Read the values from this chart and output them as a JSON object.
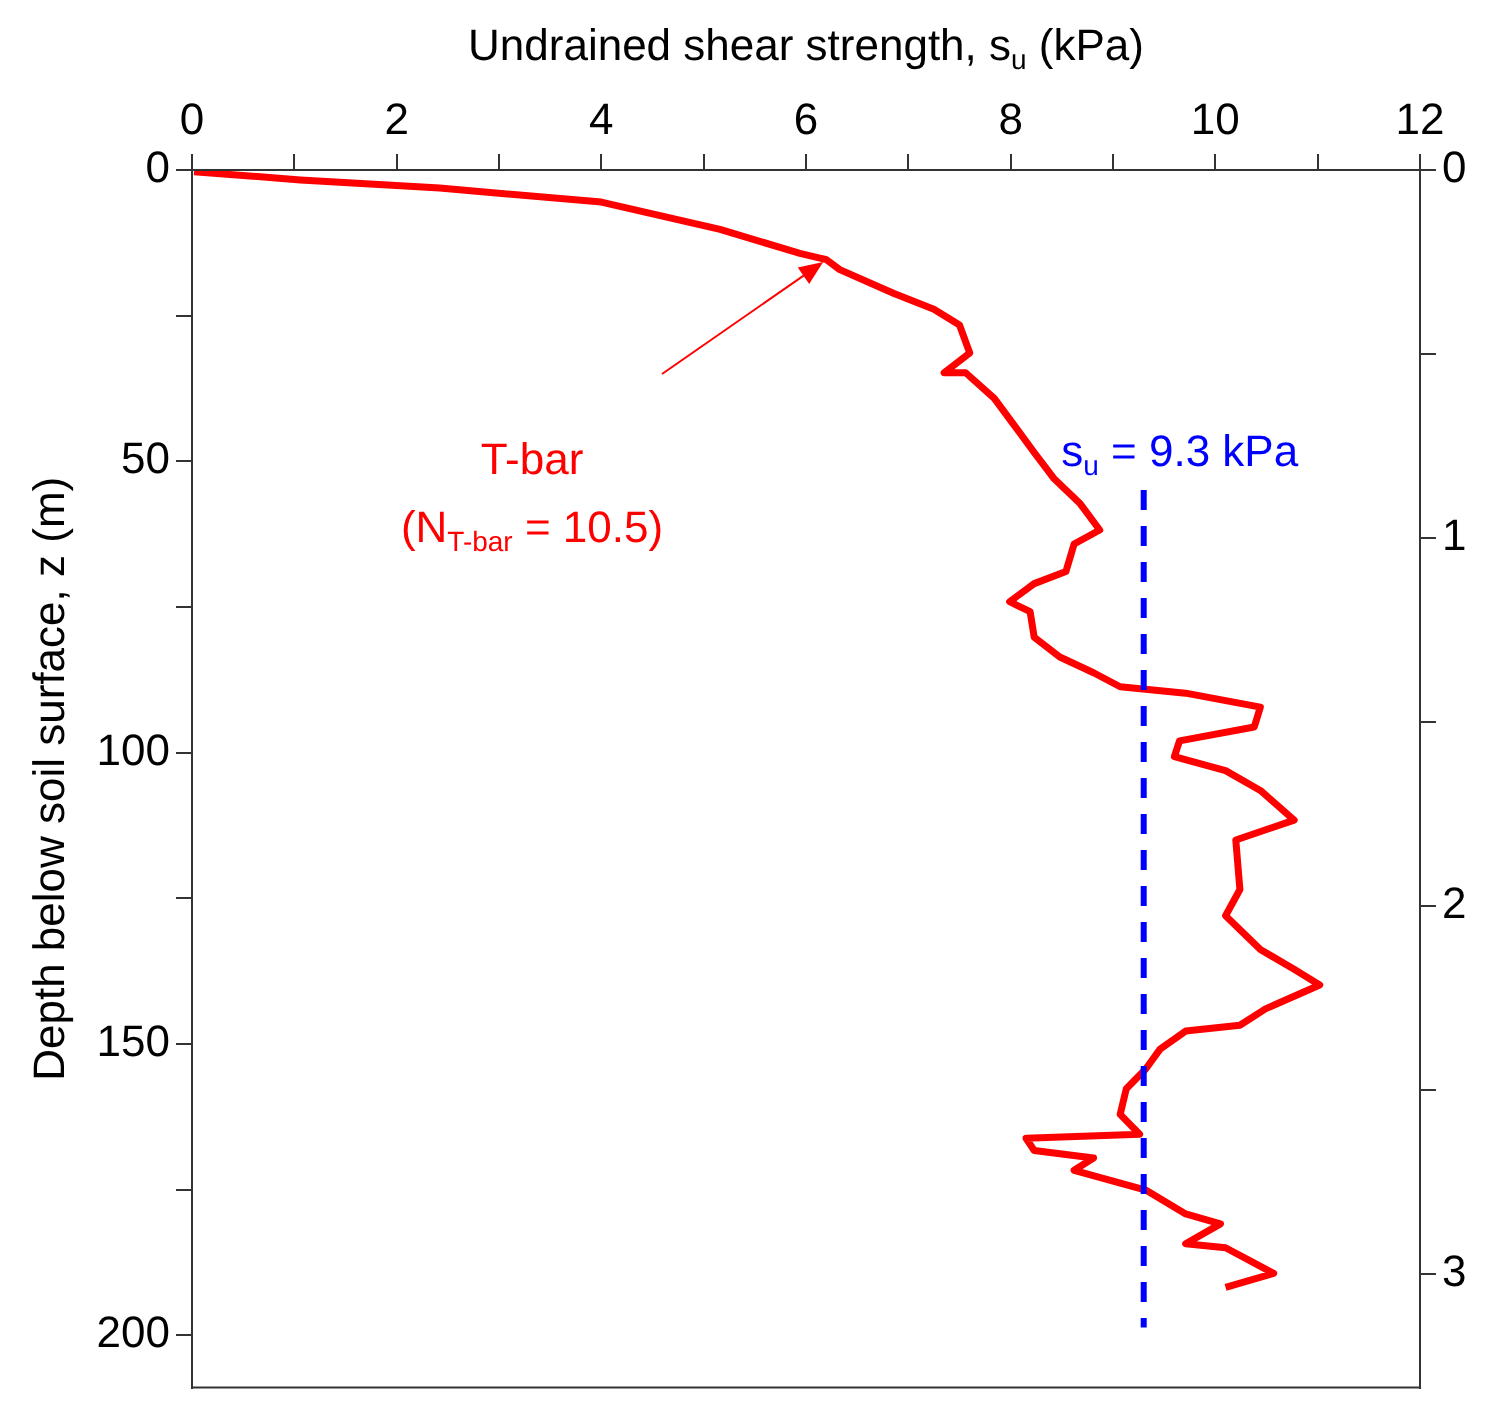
{
  "chart_data": {
    "type": "line",
    "xlabel": "Undrained shear strength, s$_{u}$ (kPa)",
    "ylabel": "Depth below soil surface, z (m)",
    "xlim": [
      0,
      12
    ],
    "xticks": [
      0,
      {
        "value": 1,
        "label": null
      },
      2,
      {
        "value": 3,
        "label": null
      },
      4,
      {
        "value": 5,
        "label": null
      },
      6,
      {
        "value": 7,
        "label": null
      },
      8,
      {
        "value": 9,
        "label": null
      },
      10,
      {
        "value": 11,
        "label": null
      },
      12
    ],
    "ylim": [
      209,
      0
    ],
    "yticks": [
      0,
      {
        "value": 25,
        "label": null
      },
      50,
      {
        "value": 75,
        "label": null
      },
      100,
      {
        "value": 125,
        "label": null
      },
      150,
      {
        "value": 175,
        "label": null
      },
      200
    ],
    "y2lim": [
      3.31,
      0
    ],
    "y2ticks": [
      0,
      {
        "value": 0.5,
        "label": null
      },
      1,
      {
        "value": 1.5,
        "label": null
      },
      2,
      {
        "value": 2.5,
        "label": null
      },
      3
    ],
    "grid": false,
    "legend": false,
    "marker": "none",
    "series": [
      {
        "name": "T-bar",
        "color": "#ff0000",
        "x": [
          0.02,
          1.06,
          2.42,
          4.0,
          5.16,
          5.94,
          6.2,
          6.33,
          6.86,
          7.25,
          7.5,
          7.6,
          7.35,
          7.56,
          7.84,
          8.03,
          8.23,
          8.42,
          8.68,
          8.87,
          8.62,
          8.54,
          8.23,
          7.99,
          8.19,
          8.23,
          8.48,
          8.81,
          9.07,
          9.71,
          10.44,
          10.38,
          9.65,
          9.6,
          10.1,
          10.44,
          10.77,
          10.2,
          10.24,
          10.1,
          10.44,
          10.77,
          11.02,
          10.49,
          10.24,
          9.71,
          9.46,
          9.32,
          9.13,
          9.07,
          9.26,
          8.15,
          8.23,
          8.81,
          8.62,
          9.32,
          9.71,
          10.05,
          9.71,
          10.1,
          10.57,
          10.1
        ],
        "values": [
          0.3,
          1.7,
          3.1,
          5.5,
          10.2,
          14.3,
          15.4,
          17.1,
          21.2,
          23.9,
          26.6,
          31.4,
          34.8,
          34.8,
          39.2,
          43.7,
          48.5,
          52.9,
          57.3,
          61.8,
          64.2,
          68.9,
          71.0,
          74.1,
          75.8,
          80.2,
          83.6,
          86.3,
          88.7,
          89.8,
          92.2,
          95.6,
          98.0,
          100.7,
          103.1,
          106.5,
          111.6,
          115.0,
          123.5,
          128.0,
          133.8,
          137.2,
          139.9,
          144.0,
          146.8,
          147.8,
          150.9,
          154.3,
          157.7,
          162.1,
          165.5,
          166.2,
          168.3,
          169.6,
          171.7,
          175.1,
          179.2,
          180.9,
          184.3,
          185.0,
          189.4,
          191.8
        ]
      }
    ],
    "ref_lines": [
      {
        "axis": "x",
        "value": 9.3,
        "label": "s$_{u}$ = 9.3 kPa",
        "color": "#0000ff",
        "line_style": "dashed"
      }
    ],
    "annotations": [
      "(N$_{T-bar}$ = 10.5)"
    ]
  }
}
